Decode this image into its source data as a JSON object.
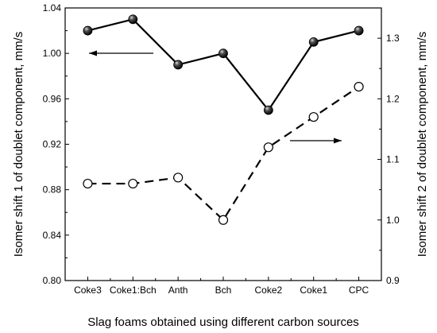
{
  "chart_data": {
    "type": "line",
    "categories": [
      "Coke3",
      "Coke1:Bch",
      "Anth",
      "Bch",
      "Coke2",
      "Coke1",
      "CPC"
    ],
    "xlabel": "Slag foams obtained using different carbon sources",
    "ylabel_left": "Isomer shift 1 of doublet component, mm/s",
    "ylabel_right": "Isomer shift 2 of doublet component, mm/s",
    "ylim_left": [
      0.8,
      1.04
    ],
    "ylim_right": [
      0.9,
      1.35
    ],
    "yticks_left": [
      "0.80",
      "0.84",
      "0.88",
      "0.92",
      "0.96",
      "1.00",
      "1.04"
    ],
    "yticks_right": [
      "0.9",
      "1.0",
      "1.1",
      "1.2",
      "1.3"
    ],
    "series": [
      {
        "axis": "left",
        "marker": "filled-sphere",
        "line": "solid",
        "values": [
          1.02,
          1.03,
          0.99,
          1.0,
          0.95,
          1.01,
          1.02
        ]
      },
      {
        "axis": "right",
        "marker": "open-circle",
        "line": "dashed",
        "values": [
          1.06,
          1.06,
          1.07,
          1.0,
          1.12,
          1.17,
          1.22
        ]
      }
    ],
    "grid": false,
    "legend": "none",
    "annotations": [
      {
        "type": "arrow",
        "series": 0,
        "direction": "left"
      },
      {
        "type": "arrow",
        "series": 1,
        "direction": "right"
      }
    ]
  }
}
